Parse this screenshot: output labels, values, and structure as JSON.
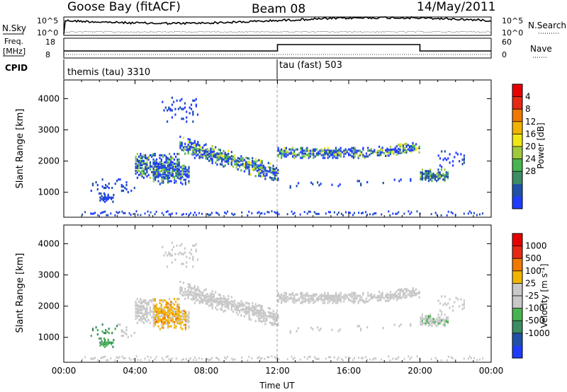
{
  "header": {
    "station": "Goose Bay (fitACF)",
    "beam": "Beam 08",
    "date": "14/May/2011"
  },
  "strip": {
    "nsky_label": "N.Sky",
    "nsky_ticks": [
      "10^5",
      "10^0"
    ],
    "nsearch_label": "N.Search",
    "nsearch_ticks": [
      "10^5",
      "10^0"
    ],
    "freq_label": "Freq.",
    "freq_unit": "[MHz]",
    "freq_ticks": [
      "18",
      "8"
    ],
    "nave_label": "Nave",
    "nave_ticks": [
      "60",
      "0"
    ],
    "cpid_label": "CPID",
    "cpid_segments": [
      {
        "label": "themis (tau) 3310",
        "start_hour": 0
      },
      {
        "label": "tau (fast) 503",
        "start_hour": 12
      }
    ]
  },
  "chart_data": [
    {
      "type": "heatmap",
      "panel": "power",
      "ylabel": "Slant Range [km]",
      "yticks": [
        1000,
        2000,
        3000,
        4000
      ],
      "ylim": [
        200,
        4600
      ],
      "xlim": [
        0,
        24
      ],
      "colorbar": {
        "label": "Power [dB]",
        "ticks": [
          "4",
          "8",
          "12",
          "16",
          "20",
          "24",
          "28"
        ],
        "colors": [
          "#1e3cff",
          "#2050a8",
          "#3c8c64",
          "#46b450",
          "#a0c83c",
          "#f0e614",
          "#f0b400",
          "#f07800",
          "#e62814",
          "#e60000"
        ]
      }
    },
    {
      "type": "heatmap",
      "panel": "velocity",
      "ylabel": "Slant Range [km]",
      "yticks": [
        1000,
        2000,
        3000,
        4000
      ],
      "ylim": [
        200,
        4600
      ],
      "xlim": [
        0,
        24
      ],
      "xlabel": "Time UT",
      "xticks": [
        "00:00",
        "04:00",
        "08:00",
        "12:00",
        "16:00",
        "20:00",
        "00:00"
      ],
      "colorbar": {
        "label": "Velocity [m s",
        "label_superscript": "-1",
        "label_close": "]",
        "ticks": [
          "1000",
          "500",
          "100",
          "25",
          "-25",
          "-100",
          "-500",
          "-1000"
        ],
        "colors": [
          "#1e3cff",
          "#2050a8",
          "#3c8c64",
          "#46b450",
          "#c8c8c8",
          "#c8c8c8",
          "#f0b400",
          "#f07800",
          "#e62814",
          "#e60000"
        ]
      },
      "ground_scatter_color": "#c8c8c8"
    }
  ]
}
